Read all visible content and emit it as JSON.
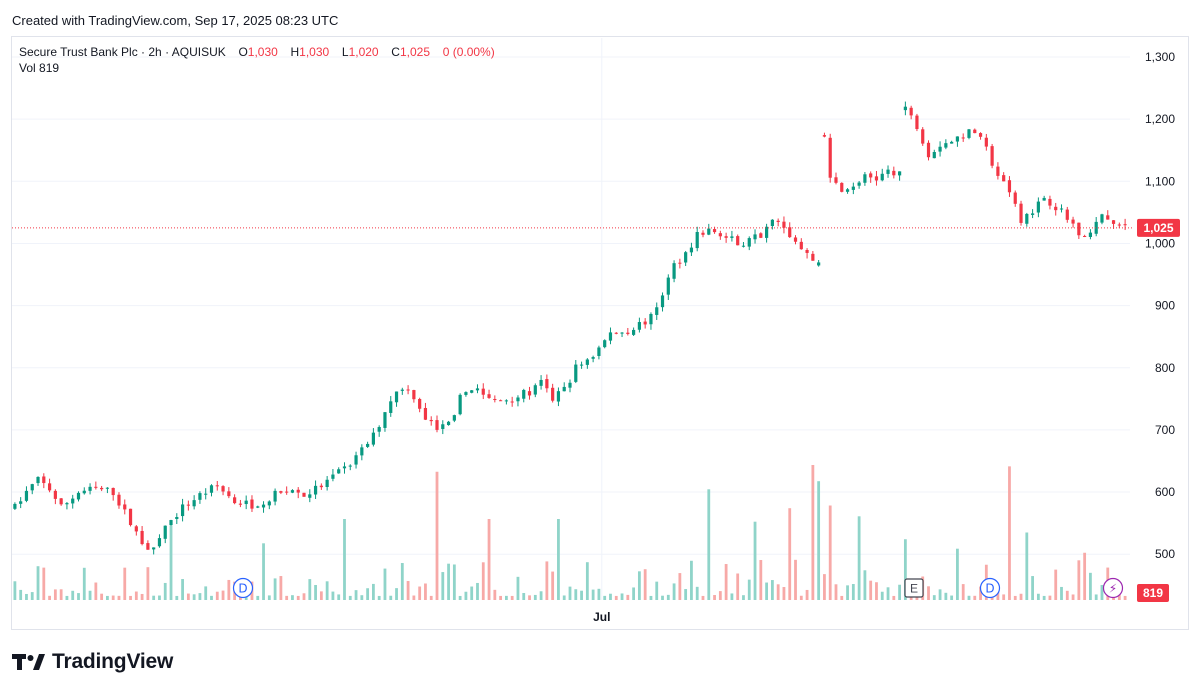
{
  "caption": "Created with TradingView.com, Sep 17, 2025 08:23 UTC",
  "brand": "TradingView",
  "legend": {
    "symbol": "Secure Trust Bank Plc · 2h · AQUISUK",
    "o_label": "O",
    "o_value": "1,030",
    "h_label": "H",
    "h_value": "1,030",
    "l_label": "L",
    "l_value": "1,020",
    "c_label": "C",
    "c_value": "1,025",
    "change": "0 (0.00%)",
    "vol_label": "Vol",
    "vol_value": "819"
  },
  "colors": {
    "up": "#089981",
    "down": "#f23645",
    "up_vol": "#8fd4c9",
    "down_vol": "#f7a9a7",
    "price_line": "#f23645"
  },
  "markers": [
    {
      "label": "D",
      "type": "dividend",
      "x_fraction": 0.2
    },
    {
      "label": "E",
      "type": "earnings",
      "x_fraction": 0.8
    },
    {
      "label": "D",
      "type": "dividend",
      "x_fraction": 0.87
    },
    {
      "label": "⚡",
      "type": "event",
      "x_fraction": 0.97
    }
  ],
  "chart_data": {
    "type": "candlestick",
    "interval": "2h",
    "x_ticks": [
      "Jul"
    ],
    "y_ticks": [
      "500",
      "600",
      "700",
      "800",
      "900",
      "1,000",
      "1,100",
      "1,200",
      "1,300"
    ],
    "ylim": [
      480,
      1310
    ],
    "last_price": "1,025",
    "last_volume": "819",
    "price_path": [
      [
        0,
        575
      ],
      [
        2,
        600
      ],
      [
        4,
        620
      ],
      [
        6,
        605
      ],
      [
        8,
        575
      ],
      [
        11,
        600
      ],
      [
        14,
        605
      ],
      [
        17,
        600
      ],
      [
        20,
        550
      ],
      [
        22,
        520
      ],
      [
        24,
        505
      ],
      [
        26,
        545
      ],
      [
        29,
        575
      ],
      [
        32,
        595
      ],
      [
        35,
        610
      ],
      [
        38,
        585
      ],
      [
        41,
        580
      ],
      [
        44,
        590
      ],
      [
        47,
        605
      ],
      [
        50,
        595
      ],
      [
        53,
        610
      ],
      [
        56,
        630
      ],
      [
        59,
        655
      ],
      [
        62,
        690
      ],
      [
        65,
        750
      ],
      [
        67,
        770
      ],
      [
        69,
        755
      ],
      [
        71,
        720
      ],
      [
        73,
        700
      ],
      [
        75,
        710
      ],
      [
        77,
        750
      ],
      [
        79,
        770
      ],
      [
        81,
        755
      ],
      [
        83,
        745
      ],
      [
        86,
        752
      ],
      [
        89,
        760
      ],
      [
        91,
        775
      ],
      [
        93,
        750
      ],
      [
        95,
        765
      ],
      [
        97,
        800
      ],
      [
        100,
        820
      ],
      [
        103,
        855
      ],
      [
        106,
        860
      ],
      [
        108,
        870
      ],
      [
        110,
        880
      ],
      [
        112,
        920
      ],
      [
        114,
        965
      ],
      [
        116,
        985
      ],
      [
        118,
        1015
      ],
      [
        120,
        1020
      ],
      [
        123,
        1010
      ],
      [
        126,
        1000
      ],
      [
        129,
        1015
      ],
      [
        131,
        1045
      ],
      [
        133,
        1030
      ],
      [
        135,
        1000
      ],
      [
        137,
        980
      ],
      [
        139,
        965
      ],
      [
        140,
        1170
      ],
      [
        141,
        1100
      ],
      [
        143,
        1090
      ],
      [
        145,
        1095
      ],
      [
        147,
        1110
      ],
      [
        149,
        1105
      ],
      [
        151,
        1115
      ],
      [
        153,
        1110
      ],
      [
        154,
        1215
      ],
      [
        156,
        1190
      ],
      [
        158,
        1145
      ],
      [
        160,
        1160
      ],
      [
        162,
        1165
      ],
      [
        164,
        1175
      ],
      [
        166,
        1180
      ],
      [
        168,
        1150
      ],
      [
        170,
        1110
      ],
      [
        172,
        1080
      ],
      [
        174,
        1040
      ],
      [
        176,
        1055
      ],
      [
        178,
        1075
      ],
      [
        180,
        1060
      ],
      [
        182,
        1040
      ],
      [
        184,
        1020
      ],
      [
        186,
        1015
      ],
      [
        188,
        1045
      ],
      [
        190,
        1030
      ],
      [
        192,
        1025
      ]
    ],
    "volume_spikes": [
      {
        "i": 27,
        "v": 0.55
      },
      {
        "i": 43,
        "v": 0.42
      },
      {
        "i": 57,
        "v": 0.6
      },
      {
        "i": 73,
        "v": 0.95
      },
      {
        "i": 82,
        "v": 0.6
      },
      {
        "i": 94,
        "v": 0.6
      },
      {
        "i": 99,
        "v": 0.28
      },
      {
        "i": 120,
        "v": 0.82
      },
      {
        "i": 128,
        "v": 0.58
      },
      {
        "i": 134,
        "v": 0.68
      },
      {
        "i": 138,
        "v": 1.0
      },
      {
        "i": 139,
        "v": 0.88
      },
      {
        "i": 141,
        "v": 0.7
      },
      {
        "i": 146,
        "v": 0.62
      },
      {
        "i": 154,
        "v": 0.45
      },
      {
        "i": 163,
        "v": 0.38
      },
      {
        "i": 172,
        "v": 0.99
      },
      {
        "i": 175,
        "v": 0.5
      },
      {
        "i": 185,
        "v": 0.35
      }
    ]
  }
}
